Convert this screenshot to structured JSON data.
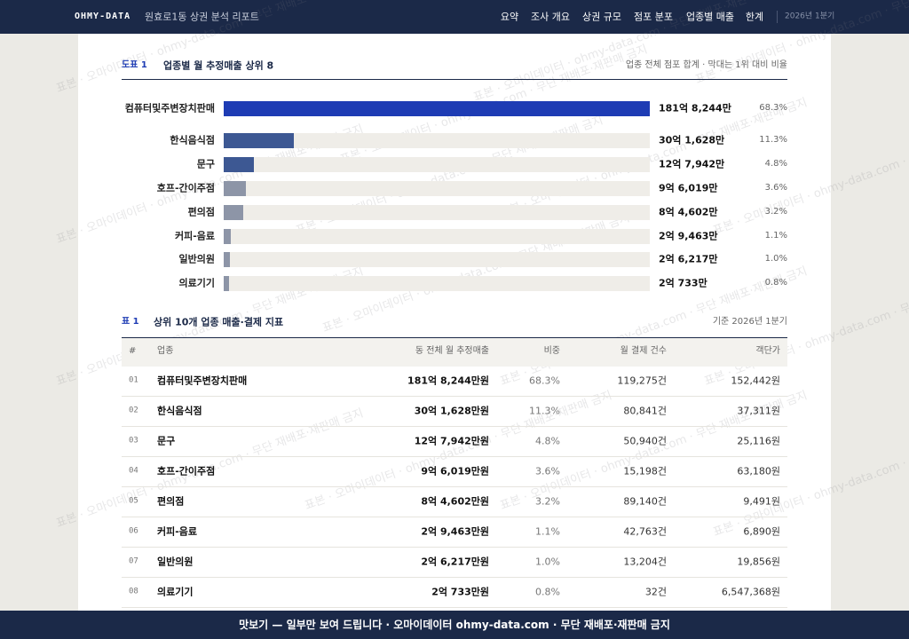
{
  "header": {
    "brand": "OHMY-DATA",
    "title": "원효로1동 상권 분석 리포트",
    "nav": [
      "요약",
      "조사 개요",
      "상권 규모",
      "점포 분포",
      "업종별 매출",
      "한계"
    ],
    "period": "2026년 1분기"
  },
  "figure": {
    "label": "도표 1",
    "title": "업종별 월 추정매출 상위 8",
    "note": "업종 전체 점포 합계 · 막대는 1위 대비 비율",
    "categories": [
      "컴퓨터및주변장치판매",
      "한식음식점",
      "문구",
      "호프-간이주점",
      "편의점",
      "커피-음료",
      "일반의원",
      "의료기기"
    ],
    "amounts": [
      "181억 8,244만",
      "30억 1,628만",
      "12억 7,942만",
      "9억 6,019만",
      "8억 4,602만",
      "2억 9,463만",
      "2억 6,217만",
      "2억 733만"
    ],
    "values": [
      68.3,
      11.3,
      4.8,
      3.6,
      3.2,
      1.1,
      1.0,
      0.8
    ],
    "value_labels": [
      "68.3%",
      "11.3%",
      "4.8%",
      "3.6%",
      "3.2%",
      "1.1%",
      "1.0%",
      "0.8%"
    ],
    "colors": [
      "#1e3cb4",
      "#3d5893",
      "#3d5893",
      "#8d95a7",
      "#8d95a7",
      "#8d95a7",
      "#8d95a7",
      "#8d95a7"
    ]
  },
  "table": {
    "label": "표 1",
    "title": "상위 10개 업종 매출·결제 지표",
    "note": "기준 2026년 1분기",
    "headers": [
      "#",
      "업종",
      "동 전체 월 추정매출",
      "비중",
      "월 결제 건수",
      "객단가"
    ],
    "rows": [
      [
        "01",
        "컴퓨터및주변장치판매",
        "181억 8,244만원",
        "68.3%",
        "119,275건",
        "152,442원"
      ],
      [
        "02",
        "한식음식점",
        "30억 1,628만원",
        "11.3%",
        "80,841건",
        "37,311원"
      ],
      [
        "03",
        "문구",
        "12억 7,942만원",
        "4.8%",
        "50,940건",
        "25,116원"
      ],
      [
        "04",
        "호프-간이주점",
        "9억 6,019만원",
        "3.6%",
        "15,198건",
        "63,180원"
      ],
      [
        "05",
        "편의점",
        "8억 4,602만원",
        "3.2%",
        "89,140건",
        "9,491원"
      ],
      [
        "06",
        "커피-음료",
        "2억 9,463만원",
        "1.1%",
        "42,763건",
        "6,890원"
      ],
      [
        "07",
        "일반의원",
        "2억 6,217만원",
        "1.0%",
        "13,204건",
        "19,856원"
      ],
      [
        "08",
        "의료기기",
        "2억 733만원",
        "0.8%",
        "32건",
        "6,547,368원"
      ]
    ]
  },
  "footer": "맛보기 — 일부만 보여 드립니다 · 오마이데이터 ohmy-data.com · 무단 재배포·재판매 금지",
  "watermark": "표본 · 오마이데이터 · ohmy-data.com · 무단 재배포·재판매 금지"
}
